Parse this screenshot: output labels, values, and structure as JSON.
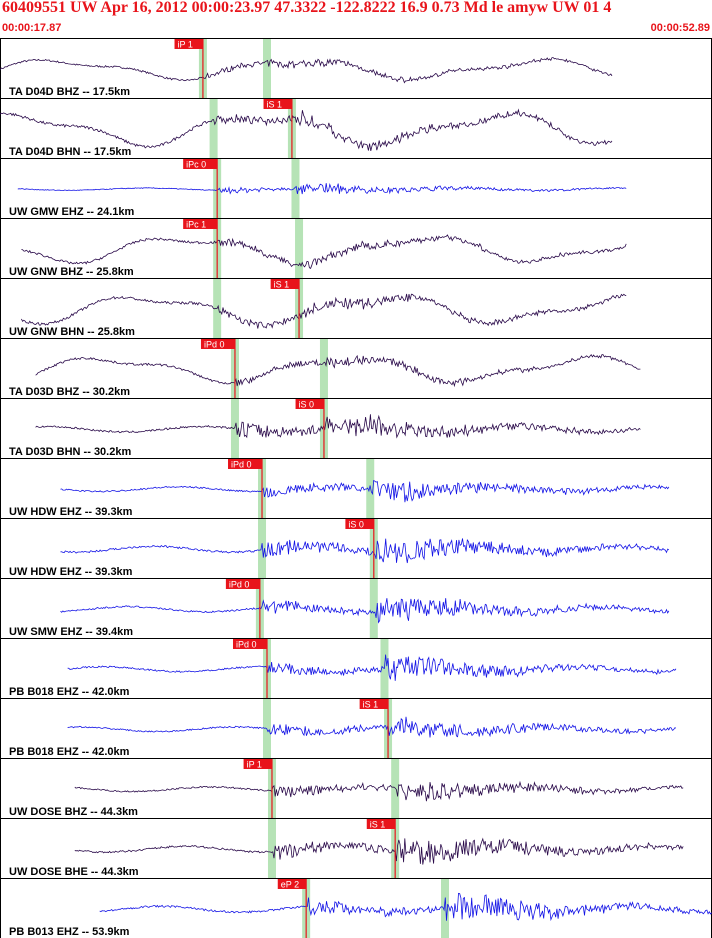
{
  "header": {
    "title": "60409551 UW Apr 16, 2012 00:00:23.97   47.3322 -122.8222 16.9 0.73 Md le amyw UW 01   4",
    "time_start": "00:00:17.87",
    "time_end": "00:00:52.89"
  },
  "colors": {
    "title": "#e8141b",
    "pick_box": "#e8141b",
    "pick_line": "#e8141b",
    "pick_band": "#b6e3b6",
    "trace_dark": "#2a0a4a",
    "trace_blue": "#1414e6",
    "frame": "#000000"
  },
  "chart_data": {
    "type": "seismogram",
    "time_range": [
      "00:00:17.87",
      "00:00:52.89"
    ],
    "event_id": "60409551",
    "traces": [
      {
        "label": "TA D04D BHZ -- 17.5km",
        "color": "dark",
        "pick": "iP 1",
        "pick_t": 0.285,
        "start": 0.0,
        "end": 0.86,
        "onset": 0.285,
        "s_t": 0.375,
        "amp": 0.55,
        "style": "long"
      },
      {
        "label": "TA D04D BHN -- 17.5km",
        "color": "dark",
        "pick": "iS 1",
        "pick_t": 0.41,
        "start": 0.0,
        "end": 0.86,
        "onset": 0.3,
        "s_t": 0.41,
        "amp": 0.9,
        "style": "long"
      },
      {
        "label": "UW GMW EHZ -- 24.1km",
        "color": "blue",
        "pick": "iPc 0",
        "pick_t": 0.305,
        "start": 0.025,
        "end": 0.88,
        "onset": 0.305,
        "s_t": 0.415,
        "amp": 0.35,
        "style": "short"
      },
      {
        "label": "UW GNW BHZ -- 25.8km",
        "color": "dark",
        "pick": "iPc 1",
        "pick_t": 0.305,
        "start": 0.03,
        "end": 0.88,
        "onset": 0.305,
        "s_t": 0.42,
        "amp": 0.75,
        "style": "long"
      },
      {
        "label": "UW GNW BHN -- 25.8km",
        "color": "dark",
        "pick": "iS 1",
        "pick_t": 0.42,
        "start": 0.03,
        "end": 0.88,
        "onset": 0.305,
        "s_t": 0.42,
        "amp": 0.8,
        "style": "long"
      },
      {
        "label": "TA D03D BHZ -- 30.2km",
        "color": "dark",
        "pick": "iPd 0",
        "pick_t": 0.33,
        "start": 0.05,
        "end": 0.9,
        "onset": 0.33,
        "s_t": 0.455,
        "amp": 0.7,
        "style": "long"
      },
      {
        "label": "TA D03D BHN -- 30.2km",
        "color": "dark",
        "pick": "iS 0",
        "pick_t": 0.455,
        "start": 0.05,
        "end": 0.9,
        "onset": 0.33,
        "s_t": 0.455,
        "amp": 0.85,
        "style": "short"
      },
      {
        "label": "UW HDW EHZ -- 39.3km",
        "color": "blue",
        "pick": "iPd 0",
        "pick_t": 0.368,
        "start": 0.085,
        "end": 0.94,
        "onset": 0.368,
        "s_t": 0.52,
        "amp": 0.7,
        "style": "short"
      },
      {
        "label": "UW HDW EHZ -- 39.3km",
        "color": "blue",
        "pick": "iS 0",
        "pick_t": 0.525,
        "start": 0.085,
        "end": 0.94,
        "onset": 0.368,
        "s_t": 0.525,
        "amp": 0.9,
        "style": "short"
      },
      {
        "label": "UW SMW EHZ -- 39.4km",
        "color": "blue",
        "pick": "iPd 0",
        "pick_t": 0.365,
        "start": 0.085,
        "end": 0.94,
        "onset": 0.365,
        "s_t": 0.525,
        "amp": 0.8,
        "style": "short"
      },
      {
        "label": "PB B018 EHZ -- 42.0km",
        "color": "blue",
        "pick": "iPd 0",
        "pick_t": 0.375,
        "start": 0.095,
        "end": 0.95,
        "onset": 0.375,
        "s_t": 0.54,
        "amp": 0.75,
        "style": "short"
      },
      {
        "label": "PB B018 EHZ -- 42.0km",
        "color": "blue",
        "pick": "iS 1",
        "pick_t": 0.545,
        "start": 0.095,
        "end": 0.95,
        "onset": 0.375,
        "s_t": 0.545,
        "amp": 0.7,
        "style": "short"
      },
      {
        "label": "UW DOSE BHZ -- 44.3km",
        "color": "dark",
        "pick": "iP 1",
        "pick_t": 0.382,
        "start": 0.105,
        "end": 0.96,
        "onset": 0.382,
        "s_t": 0.555,
        "amp": 0.7,
        "style": "short"
      },
      {
        "label": "UW DOSE BHE -- 44.3km",
        "color": "dark",
        "pick": "iS 1",
        "pick_t": 0.555,
        "start": 0.105,
        "end": 0.96,
        "onset": 0.382,
        "s_t": 0.555,
        "amp": 0.9,
        "style": "short"
      },
      {
        "label": "PB B013 EHZ -- 53.9km",
        "color": "blue",
        "pick": "eP 2",
        "pick_t": 0.43,
        "start": 0.14,
        "end": 1.0,
        "onset": 0.43,
        "s_t": 0.625,
        "amp": 0.9,
        "style": "short"
      }
    ]
  }
}
